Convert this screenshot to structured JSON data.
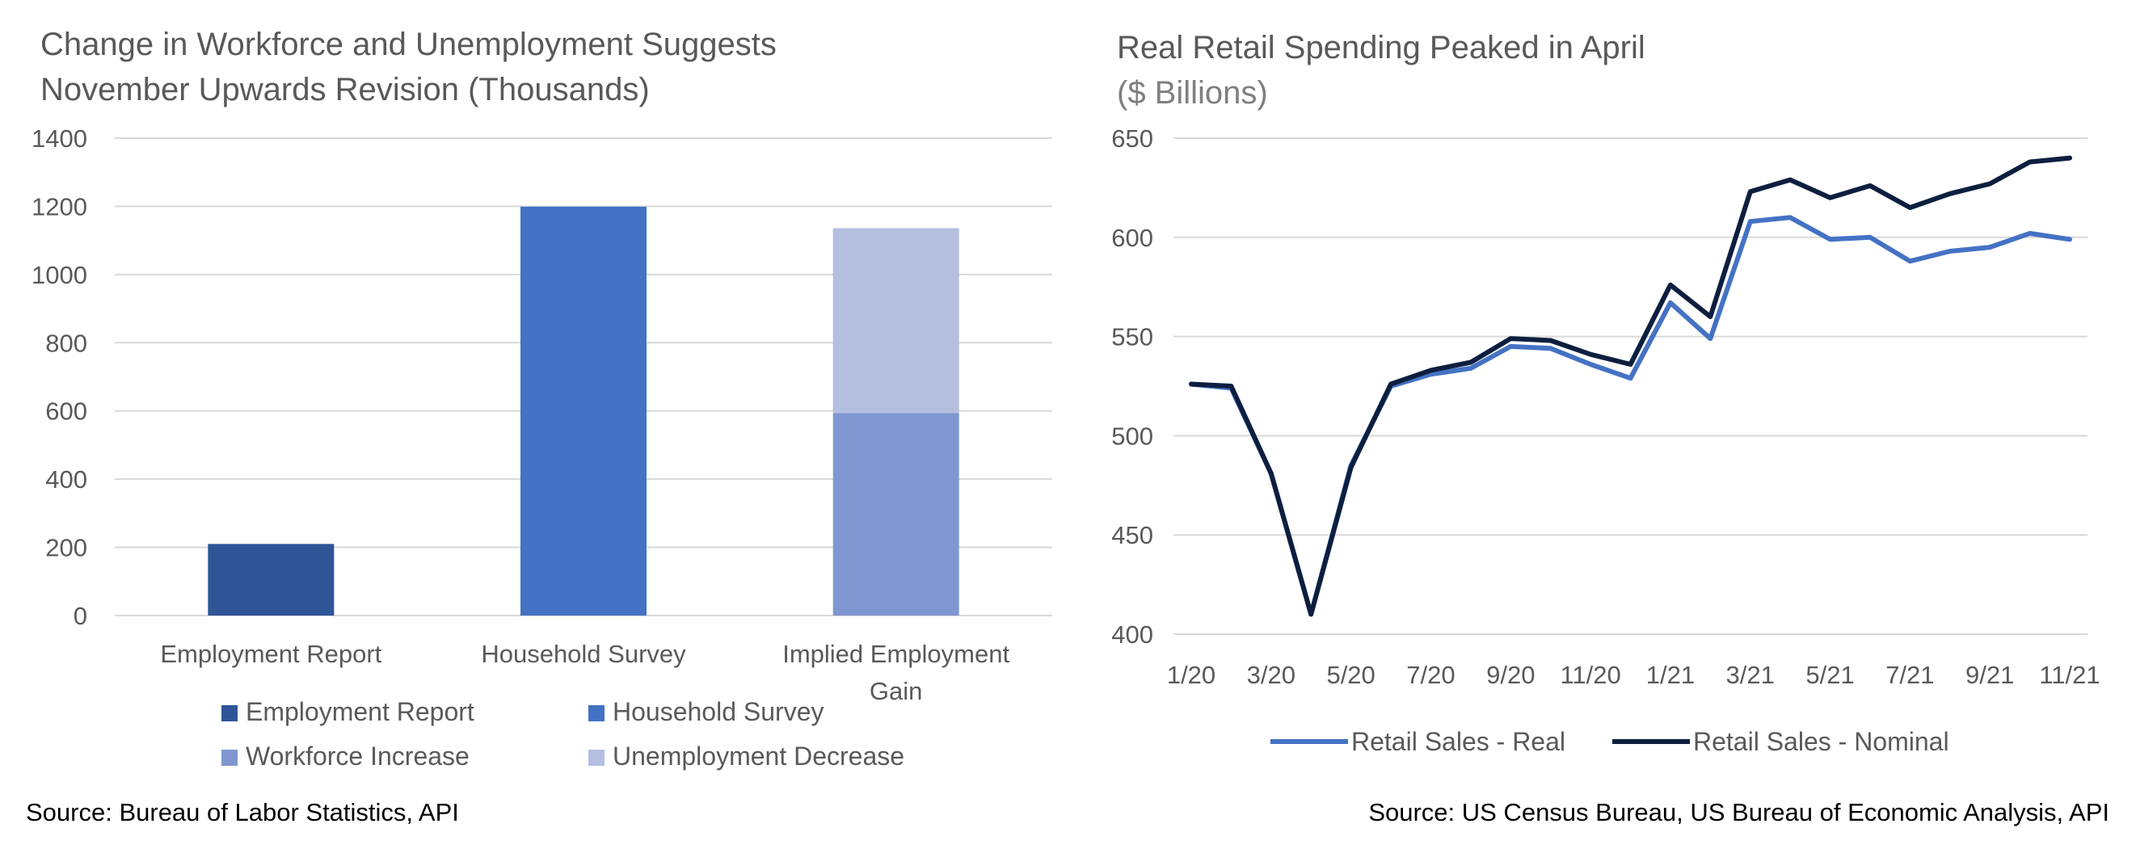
{
  "colors": {
    "employment_report": "#2f5597",
    "household_survey": "#4472c4",
    "workforce_increase": "#7f96d1",
    "unemployment_decrease": "#b4bfe0",
    "retail_real": "#4472c4",
    "retail_nominal": "#0d1f3f",
    "grid": "#d9d9d9",
    "text": "#595959"
  },
  "chart_data": [
    {
      "type": "bar",
      "stacked": true,
      "title": "Change in Workforce and Unemployment Suggests November Upwards Revision (Thousands)",
      "title_lines": [
        "Change in Workforce and Unemployment Suggests",
        "November Upwards Revision (Thousands)"
      ],
      "xlabel": "",
      "ylabel": "",
      "categories": [
        "Employment Report",
        "Household Survey",
        "Implied Employment Gain"
      ],
      "category_lines": [
        [
          "Employment Report"
        ],
        [
          "Household Survey"
        ],
        [
          "Implied Employment",
          "Gain"
        ]
      ],
      "series": [
        {
          "name": "Employment Report",
          "values": [
            210,
            0,
            0
          ]
        },
        {
          "name": "Household Survey",
          "values": [
            0,
            1199,
            0
          ]
        },
        {
          "name": "Workforce Increase",
          "values": [
            0,
            0,
            594
          ]
        },
        {
          "name": "Unemployment Decrease",
          "values": [
            0,
            0,
            542
          ]
        }
      ],
      "ylim": [
        0,
        1400
      ],
      "yticks": [
        "0",
        "200",
        "400",
        "600",
        "800",
        "1000",
        "1200",
        "1400"
      ],
      "grid": true,
      "legend_position": "bottom",
      "source": "Source: Bureau of Labor Statistics, API"
    },
    {
      "type": "line",
      "title": "Real Retail Spending Peaked in April",
      "subtitle": "($ Billions)",
      "xlabel": "",
      "ylabel": "",
      "x": [
        "1/20",
        "2/20",
        "3/20",
        "4/20",
        "5/20",
        "6/20",
        "7/20",
        "8/20",
        "9/20",
        "10/20",
        "11/20",
        "12/20",
        "1/21",
        "2/21",
        "3/21",
        "4/21",
        "5/21",
        "6/21",
        "7/21",
        "8/21",
        "9/21",
        "10/21",
        "11/21"
      ],
      "xticks": [
        "1/20",
        "3/20",
        "5/20",
        "7/20",
        "9/20",
        "11/20",
        "1/21",
        "3/21",
        "5/21",
        "7/21",
        "9/21",
        "11/21"
      ],
      "series": [
        {
          "name": "Retail Sales - Real",
          "values": [
            526,
            524,
            481,
            410,
            485,
            525,
            531,
            534,
            545,
            544,
            536,
            529,
            567,
            549,
            608,
            610,
            599,
            600,
            588,
            593,
            595,
            602,
            599
          ]
        },
        {
          "name": "Retail Sales - Nominal",
          "values": [
            526,
            525,
            481,
            410,
            484,
            526,
            533,
            537,
            549,
            548,
            541,
            536,
            576,
            560,
            623,
            629,
            620,
            626,
            615,
            622,
            627,
            638,
            640
          ]
        }
      ],
      "ylim": [
        400,
        650
      ],
      "yticks": [
        "400",
        "450",
        "500",
        "550",
        "600",
        "650"
      ],
      "grid": true,
      "legend_position": "bottom",
      "source": "Source: US Census Bureau, US Bureau of Economic Analysis, API"
    }
  ]
}
